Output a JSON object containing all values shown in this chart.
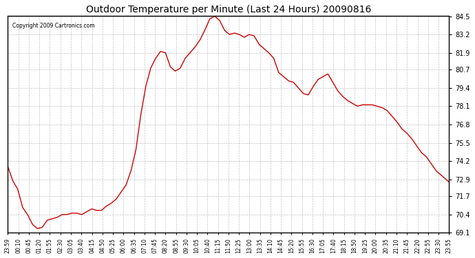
{
  "title": "Outdoor Temperature per Minute (Last 24 Hours) 20090816",
  "copyright": "Copyright 2009 Cartronics.com",
  "line_color": "#cc0000",
  "bg_color": "#ffffff",
  "plot_bg_color": "#ffffff",
  "grid_color": "#aaaaaa",
  "ylim": [
    69.1,
    84.5
  ],
  "yticks": [
    69.1,
    70.4,
    71.7,
    72.9,
    74.2,
    75.5,
    76.8,
    78.1,
    79.4,
    80.7,
    81.9,
    83.2,
    84.5
  ],
  "xtick_labels": [
    "23:59",
    "00:10",
    "00:45",
    "01:20",
    "01:55",
    "02:30",
    "03:05",
    "03:40",
    "04:15",
    "04:50",
    "05:25",
    "06:00",
    "06:35",
    "07:10",
    "07:45",
    "08:20",
    "08:55",
    "09:30",
    "10:05",
    "10:40",
    "11:15",
    "11:50",
    "12:25",
    "13:00",
    "13:35",
    "14:10",
    "14:45",
    "15:20",
    "15:55",
    "16:30",
    "17:05",
    "17:40",
    "18:15",
    "18:50",
    "19:25",
    "20:00",
    "20:35",
    "21:10",
    "21:45",
    "22:20",
    "22:55",
    "23:30",
    "23:55"
  ],
  "keypoints": [
    [
      0,
      73.8
    ],
    [
      5,
      72.8
    ],
    [
      10,
      72.2
    ],
    [
      15,
      70.9
    ],
    [
      20,
      70.4
    ],
    [
      25,
      69.7
    ],
    [
      30,
      69.4
    ],
    [
      35,
      69.5
    ],
    [
      40,
      70.0
    ],
    [
      45,
      70.1
    ],
    [
      50,
      70.2
    ],
    [
      55,
      70.4
    ],
    [
      60,
      70.4
    ],
    [
      65,
      70.5
    ],
    [
      70,
      70.5
    ],
    [
      75,
      70.4
    ],
    [
      80,
      70.6
    ],
    [
      85,
      70.8
    ],
    [
      90,
      70.7
    ],
    [
      95,
      70.7
    ],
    [
      100,
      71.0
    ],
    [
      105,
      71.2
    ],
    [
      110,
      71.5
    ],
    [
      115,
      72.0
    ],
    [
      120,
      72.5
    ],
    [
      125,
      73.5
    ],
    [
      130,
      75.0
    ],
    [
      135,
      77.5
    ],
    [
      140,
      79.5
    ],
    [
      145,
      80.8
    ],
    [
      150,
      81.5
    ],
    [
      155,
      82.0
    ],
    [
      160,
      81.9
    ],
    [
      165,
      80.9
    ],
    [
      170,
      80.6
    ],
    [
      175,
      80.8
    ],
    [
      180,
      81.5
    ],
    [
      185,
      81.9
    ],
    [
      190,
      82.3
    ],
    [
      195,
      82.8
    ],
    [
      200,
      83.5
    ],
    [
      205,
      84.3
    ],
    [
      210,
      84.5
    ],
    [
      215,
      84.2
    ],
    [
      220,
      83.5
    ],
    [
      225,
      83.2
    ],
    [
      230,
      83.3
    ],
    [
      235,
      83.2
    ],
    [
      240,
      83.0
    ],
    [
      245,
      83.2
    ],
    [
      250,
      83.1
    ],
    [
      255,
      82.5
    ],
    [
      260,
      82.2
    ],
    [
      265,
      81.9
    ],
    [
      270,
      81.5
    ],
    [
      275,
      80.5
    ],
    [
      280,
      80.2
    ],
    [
      285,
      79.9
    ],
    [
      290,
      79.8
    ],
    [
      295,
      79.4
    ],
    [
      300,
      79.0
    ],
    [
      305,
      78.9
    ],
    [
      310,
      79.5
    ],
    [
      315,
      80.0
    ],
    [
      320,
      80.2
    ],
    [
      325,
      80.4
    ],
    [
      330,
      79.8
    ],
    [
      335,
      79.2
    ],
    [
      340,
      78.8
    ],
    [
      345,
      78.5
    ],
    [
      350,
      78.3
    ],
    [
      355,
      78.1
    ],
    [
      360,
      78.2
    ],
    [
      365,
      78.2
    ],
    [
      370,
      78.2
    ],
    [
      375,
      78.1
    ],
    [
      380,
      78.0
    ],
    [
      385,
      77.8
    ],
    [
      390,
      77.4
    ],
    [
      395,
      77.0
    ],
    [
      400,
      76.5
    ],
    [
      405,
      76.2
    ],
    [
      410,
      75.8
    ],
    [
      415,
      75.3
    ],
    [
      420,
      74.8
    ],
    [
      425,
      74.5
    ],
    [
      430,
      74.0
    ],
    [
      435,
      73.5
    ],
    [
      440,
      73.2
    ],
    [
      445,
      72.9
    ],
    [
      448,
      72.7
    ]
  ]
}
